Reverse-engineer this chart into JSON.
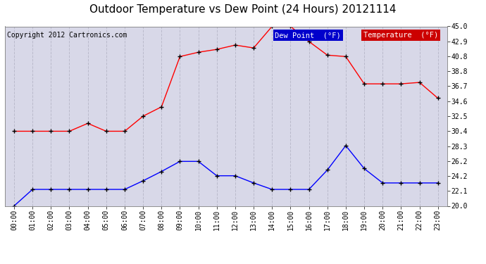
{
  "title": "Outdoor Temperature vs Dew Point (24 Hours) 20121114",
  "copyright": "Copyright 2012 Cartronics.com",
  "hours": [
    "00:00",
    "01:00",
    "02:00",
    "03:00",
    "04:00",
    "05:00",
    "06:00",
    "07:00",
    "08:00",
    "09:00",
    "10:00",
    "11:00",
    "12:00",
    "13:00",
    "14:00",
    "15:00",
    "16:00",
    "17:00",
    "18:00",
    "19:00",
    "20:00",
    "21:00",
    "22:00",
    "23:00"
  ],
  "temperature": [
    30.4,
    30.4,
    30.4,
    30.4,
    31.5,
    30.4,
    30.4,
    32.5,
    33.8,
    40.8,
    41.4,
    41.8,
    42.4,
    42.0,
    45.0,
    45.0,
    42.9,
    41.0,
    40.8,
    37.0,
    37.0,
    37.0,
    37.2,
    35.0
  ],
  "dew_point": [
    20.0,
    22.3,
    22.3,
    22.3,
    22.3,
    22.3,
    22.3,
    23.5,
    24.8,
    26.2,
    26.2,
    24.2,
    24.2,
    23.2,
    22.3,
    22.3,
    22.3,
    25.0,
    28.4,
    25.2,
    23.2,
    23.2,
    23.2,
    23.2
  ],
  "temp_color": "#ff0000",
  "dew_color": "#0000ff",
  "bg_color": "#ffffff",
  "plot_bg_color": "#d8d8e8",
  "grid_color": "#bbbbcc",
  "ylim": [
    20.0,
    45.0
  ],
  "yticks_right": [
    20.0,
    22.1,
    24.2,
    26.2,
    28.3,
    30.4,
    32.5,
    34.6,
    36.7,
    38.8,
    40.8,
    42.9,
    45.0
  ],
  "legend_dew_bg": "#0000cc",
  "legend_temp_bg": "#cc0000",
  "legend_text_color": "#ffffff",
  "title_fontsize": 11,
  "copyright_fontsize": 7,
  "axis_tick_fontsize": 7,
  "marker": "+",
  "marker_color": "#000000",
  "marker_size": 5,
  "line_width": 1.0
}
